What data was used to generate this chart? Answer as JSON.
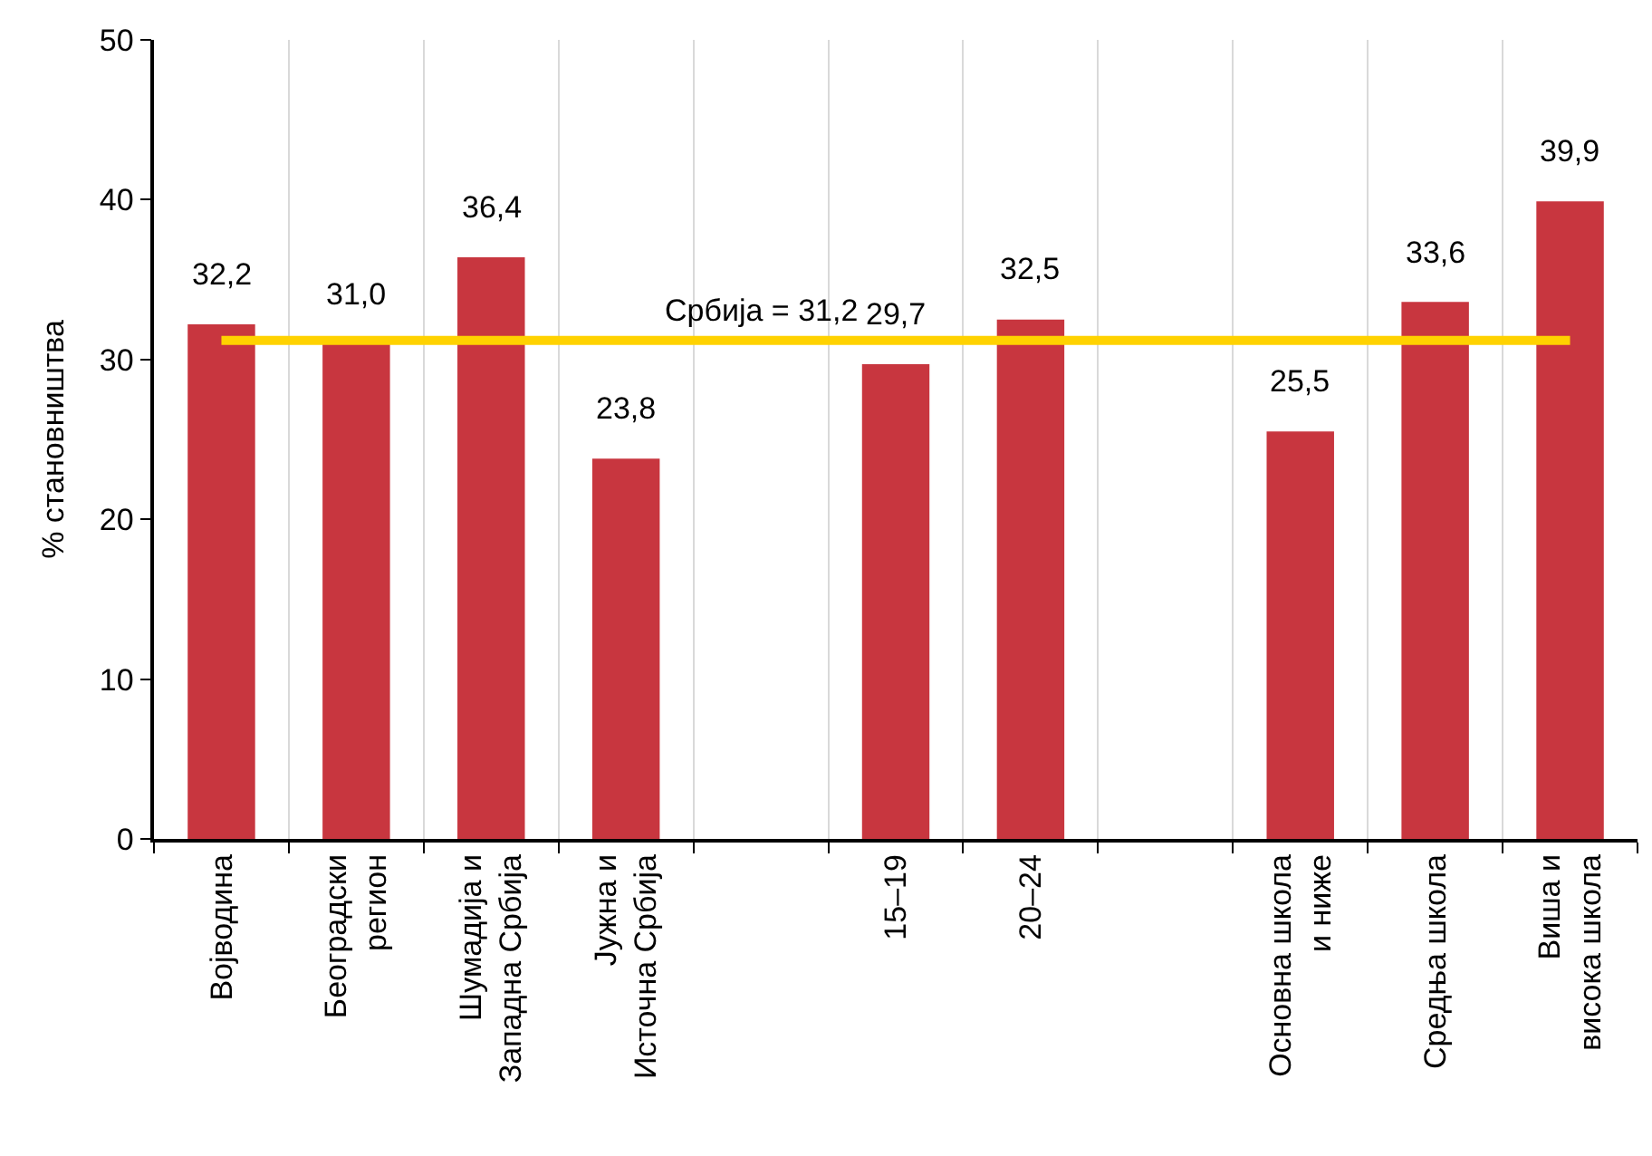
{
  "chart_data": {
    "type": "bar",
    "categories": [
      "Војводина",
      "Београдски\nрегион",
      "Шумадија и\nЗападна Србија",
      "Јужна и\nИсточна Србија",
      null,
      "15–19",
      "20–24",
      null,
      "Основна школа\nи ниже",
      "Средња школа",
      "Виша и\nвисока школа"
    ],
    "values": [
      32.2,
      31.0,
      36.4,
      23.8,
      null,
      29.7,
      32.5,
      null,
      25.5,
      33.6,
      39.9
    ],
    "value_labels": [
      "32,2",
      "31,0",
      "36,4",
      "23,8",
      null,
      "29,7",
      "32,5",
      null,
      "25,5",
      "33,6",
      "39,9"
    ],
    "color": "#c8363f",
    "ylabel": "% становништва",
    "ylim": [
      0,
      50
    ],
    "yticks": [
      0,
      10,
      20,
      30,
      40,
      50
    ],
    "grid": "x",
    "ref_lines": [
      {
        "axis": "y",
        "value": 31.2,
        "label": "Србија = 31,2",
        "color": "#ffd200"
      }
    ]
  }
}
